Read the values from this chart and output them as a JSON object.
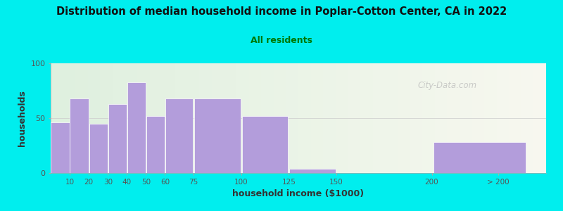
{
  "title": "Distribution of median household income in Poplar-Cotton Center, CA in 2022",
  "subtitle": "All residents",
  "xlabel": "household income ($1000)",
  "ylabel": "households",
  "bg_outer": "#00EEEE",
  "bg_inner": "#eef5ee",
  "bar_color": "#b39ddb",
  "bar_edge_color": "#ffffff",
  "title_color": "#111111",
  "subtitle_color": "#007700",
  "axis_label_color": "#333333",
  "tick_label_color": "#555555",
  "categories": [
    "10",
    "20",
    "30",
    "40",
    "50",
    "60",
    "75",
    "100",
    "125",
    "150",
    "200",
    "> 200"
  ],
  "values": [
    46,
    68,
    45,
    63,
    83,
    52,
    68,
    68,
    52,
    4,
    0,
    28
  ],
  "bar_widths": [
    10,
    10,
    10,
    10,
    10,
    10,
    15,
    25,
    25,
    25,
    50,
    50
  ],
  "bar_lefts": [
    0,
    10,
    20,
    30,
    40,
    50,
    60,
    75,
    100,
    125,
    150,
    200
  ],
  "xlim": [
    0,
    260
  ],
  "ylim": [
    0,
    100
  ],
  "yticks": [
    0,
    50,
    100
  ],
  "watermark": "City-Data.com"
}
